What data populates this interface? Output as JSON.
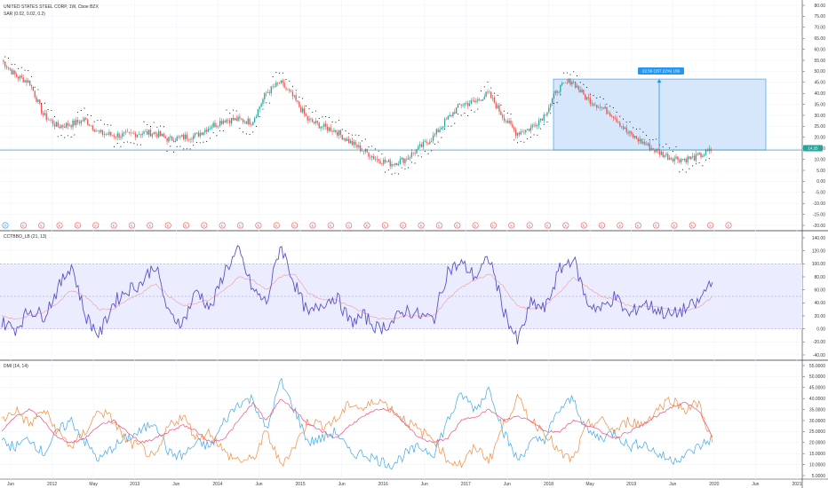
{
  "chart_title": "UNITED STATES STEEL CORP, 1W, Cboe BZX",
  "colors": {
    "up": "#26a69a",
    "down": "#ef5350",
    "sar": "#000000",
    "box_fill": "#cfe3fa",
    "box_stroke": "#2196f3",
    "osc_line": "#5b52c9",
    "osc_signal": "#ef9a9a",
    "osc_band": "#ececff",
    "dmi_plus": "#3da7e8",
    "dmi_minus": "#f48b3a",
    "adx": "#ef4e7c",
    "price_line": "#1e88a8"
  },
  "xaxis": {
    "labels": [
      "Jun",
      "2012",
      "May",
      "2013",
      "Jun",
      "2014",
      "Jun",
      "2015",
      "Jun",
      "2016",
      "Jun",
      "2017",
      "Jun",
      "2018",
      "May",
      "2019",
      "Jun",
      "2020",
      "Jun",
      "2021"
    ]
  },
  "panes": {
    "price": {
      "title": "UNITED STATES STEEL CORP, 1W, Cboe BZX",
      "legend": "SAR (0.02, 0.02, 0.2)",
      "y_labels": [
        "80.00",
        "75.00",
        "70.00",
        "65.00",
        "60.00",
        "55.00",
        "50.00",
        "45.00",
        "40.00",
        "35.00",
        "30.00",
        "25.00",
        "20.00",
        "15.00",
        "10.00",
        "5.00",
        "0.00",
        "-5.00",
        "-10.00",
        "-15.00",
        "-20.00"
      ],
      "last_price": "14.25",
      "measure_label": "22.56 (157.22%) 156",
      "ylim": [
        -20,
        80
      ]
    },
    "osc": {
      "title": "CCTBBO_LB (21, 13)",
      "y_labels": [
        "140.00",
        "120.00",
        "100.00",
        "80.00",
        "60.00",
        "40.00",
        "20.00",
        "0.00",
        "-20.00",
        "-40.00"
      ],
      "ylim": [
        -40,
        140
      ]
    },
    "dmi": {
      "title": "DMI (14, 14)",
      "y_labels": [
        "55.0000",
        "50.0000",
        "45.0000",
        "40.0000",
        "35.0000",
        "30.0000",
        "25.0000",
        "20.0000",
        "15.0000",
        "10.0000",
        "5.0000"
      ],
      "ylim": [
        5,
        55
      ]
    }
  },
  "event_markers": [
    "D",
    "E",
    "E",
    "E",
    "E",
    "E",
    "E",
    "E",
    "E",
    "E",
    "E",
    "E",
    "E",
    "E",
    "E",
    "E",
    "E",
    "E",
    "E",
    "E",
    "E",
    "E",
    "E",
    "E",
    "E",
    "E",
    "E",
    "E",
    "E",
    "E",
    "E",
    "E",
    "E",
    "E",
    "E",
    "E",
    "E",
    "E",
    "E",
    "E",
    "E"
  ],
  "chart_data": [
    {
      "type": "line",
      "title": "UNITED STATES STEEL CORP, 1W, Cboe BZX",
      "ylabel": "",
      "ylim": [
        -20,
        80
      ],
      "x": [
        "2011-06",
        "2011-08",
        "2011-10",
        "2011-12",
        "2012-02",
        "2012-04",
        "2012-06",
        "2012-08",
        "2012-10",
        "2012-12",
        "2013-02",
        "2013-04",
        "2013-06",
        "2013-08",
        "2013-10",
        "2013-12",
        "2014-02",
        "2014-04",
        "2014-06",
        "2014-08",
        "2014-10",
        "2014-12",
        "2015-02",
        "2015-04",
        "2015-06",
        "2015-08",
        "2015-10",
        "2015-12",
        "2016-02",
        "2016-04",
        "2016-06",
        "2016-08",
        "2016-10",
        "2016-12",
        "2017-02",
        "2017-04",
        "2017-06",
        "2017-08",
        "2017-10",
        "2017-12",
        "2018-02",
        "2018-04",
        "2018-06",
        "2018-08",
        "2018-10",
        "2018-12",
        "2019-02",
        "2019-04",
        "2019-06",
        "2019-08",
        "2019-10",
        "2019-12"
      ],
      "series": [
        {
          "values": [
            55,
            48,
            45,
            30,
            25,
            26,
            28,
            22,
            21,
            21,
            22,
            22,
            19,
            20,
            21,
            25,
            28,
            28,
            27,
            40,
            45,
            38,
            28,
            25,
            23,
            18,
            14,
            10,
            8,
            10,
            15,
            20,
            28,
            35,
            36,
            40,
            30,
            22,
            24,
            30,
            42,
            46,
            38,
            34,
            30,
            22,
            18,
            14,
            11,
            10,
            11,
            14
          ]
        }
      ]
    },
    {
      "type": "line",
      "title": "CCTBBO_LB (21, 13)",
      "ylim": [
        -40,
        140
      ],
      "x": [
        "2011-06",
        "2011-08",
        "2011-10",
        "2011-12",
        "2012-02",
        "2012-04",
        "2012-06",
        "2012-08",
        "2012-10",
        "2012-12",
        "2013-02",
        "2013-04",
        "2013-06",
        "2013-08",
        "2013-10",
        "2013-12",
        "2014-02",
        "2014-04",
        "2014-06",
        "2014-08",
        "2014-10",
        "2014-12",
        "2015-02",
        "2015-04",
        "2015-06",
        "2015-08",
        "2015-10",
        "2015-12",
        "2016-02",
        "2016-04",
        "2016-06",
        "2016-08",
        "2016-10",
        "2016-12",
        "2017-02",
        "2017-04",
        "2017-06",
        "2017-08",
        "2017-10",
        "2017-12",
        "2018-02",
        "2018-04",
        "2018-06",
        "2018-08",
        "2018-10",
        "2018-12",
        "2019-02",
        "2019-04",
        "2019-06",
        "2019-08",
        "2019-10",
        "2019-12"
      ],
      "series": [
        {
          "name": "",
          "values": [
            10,
            0,
            30,
            20,
            60,
            100,
            20,
            -10,
            40,
            60,
            70,
            100,
            20,
            10,
            60,
            30,
            90,
            120,
            60,
            40,
            130,
            70,
            20,
            40,
            50,
            10,
            20,
            0,
            10,
            30,
            20,
            15,
            90,
            100,
            80,
            110,
            30,
            -20,
            40,
            30,
            90,
            110,
            40,
            30,
            50,
            20,
            40,
            30,
            20,
            30,
            40,
            80
          ]
        },
        {
          "name": "",
          "values": [
            20,
            15,
            20,
            25,
            40,
            60,
            50,
            30,
            30,
            45,
            55,
            70,
            50,
            35,
            40,
            45,
            60,
            80,
            75,
            60,
            80,
            85,
            55,
            45,
            45,
            35,
            25,
            15,
            15,
            20,
            20,
            20,
            45,
            65,
            75,
            85,
            65,
            35,
            30,
            35,
            55,
            80,
            65,
            50,
            45,
            35,
            35,
            35,
            30,
            28,
            32,
            50
          ]
        }
      ]
    },
    {
      "type": "line",
      "title": "DMI (14, 14)",
      "ylim": [
        5,
        55
      ],
      "x": [
        "2011-06",
        "2011-08",
        "2011-10",
        "2011-12",
        "2012-02",
        "2012-04",
        "2012-06",
        "2012-08",
        "2012-10",
        "2012-12",
        "2013-02",
        "2013-04",
        "2013-06",
        "2013-08",
        "2013-10",
        "2013-12",
        "2014-02",
        "2014-04",
        "2014-06",
        "2014-08",
        "2014-10",
        "2014-12",
        "2015-02",
        "2015-04",
        "2015-06",
        "2015-08",
        "2015-10",
        "2015-12",
        "2016-02",
        "2016-04",
        "2016-06",
        "2016-08",
        "2016-10",
        "2016-12",
        "2017-02",
        "2017-04",
        "2017-06",
        "2017-08",
        "2017-10",
        "2017-12",
        "2018-02",
        "2018-04",
        "2018-06",
        "2018-08",
        "2018-10",
        "2018-12",
        "2019-02",
        "2019-04",
        "2019-06",
        "2019-08",
        "2019-10",
        "2019-12"
      ],
      "series": [
        {
          "name": "",
          "values": [
            20,
            18,
            22,
            15,
            25,
            30,
            20,
            12,
            18,
            22,
            25,
            30,
            15,
            14,
            20,
            18,
            30,
            38,
            40,
            25,
            48,
            35,
            20,
            22,
            25,
            15,
            15,
            12,
            10,
            15,
            18,
            15,
            30,
            42,
            35,
            45,
            25,
            12,
            20,
            22,
            35,
            40,
            25,
            22,
            25,
            18,
            20,
            15,
            12,
            14,
            18,
            22
          ]
        },
        {
          "name": "",
          "values": [
            30,
            35,
            28,
            35,
            25,
            18,
            25,
            35,
            30,
            20,
            18,
            12,
            28,
            32,
            22,
            25,
            15,
            12,
            12,
            25,
            10,
            18,
            30,
            28,
            30,
            38,
            35,
            40,
            35,
            30,
            25,
            22,
            12,
            10,
            18,
            12,
            28,
            40,
            30,
            25,
            15,
            12,
            28,
            30,
            25,
            30,
            28,
            35,
            40,
            35,
            38,
            20
          ]
        },
        {
          "name": "",
          "values": [
            25,
            32,
            35,
            30,
            22,
            20,
            22,
            28,
            30,
            25,
            20,
            22,
            25,
            28,
            25,
            20,
            22,
            30,
            38,
            30,
            40,
            35,
            28,
            25,
            22,
            28,
            32,
            35,
            35,
            28,
            22,
            20,
            22,
            30,
            32,
            35,
            30,
            32,
            30,
            25,
            25,
            30,
            28,
            25,
            22,
            25,
            28,
            32,
            36,
            38,
            35,
            22
          ]
        }
      ]
    }
  ]
}
